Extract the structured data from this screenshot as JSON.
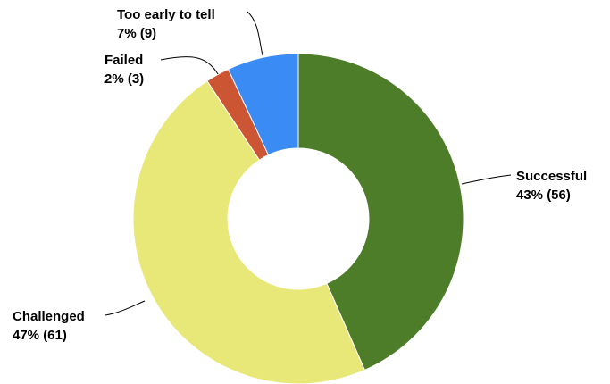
{
  "chart_data": {
    "type": "pie",
    "subtype": "donut",
    "title": "",
    "slices": [
      {
        "name": "Successful",
        "percent_label": "43% (56)",
        "value": 56,
        "color": "#4e7d2a"
      },
      {
        "name": "Challenged",
        "percent_label": "47% (61)",
        "value": 61,
        "color": "#e8e878"
      },
      {
        "name": "Failed",
        "percent_label": "2% (3)",
        "value": 3,
        "color": "#cc5533"
      },
      {
        "name": "Too early to tell",
        "percent_label": "7% (9)",
        "value": 9,
        "color": "#3b8bf5"
      }
    ],
    "legend": "none"
  }
}
